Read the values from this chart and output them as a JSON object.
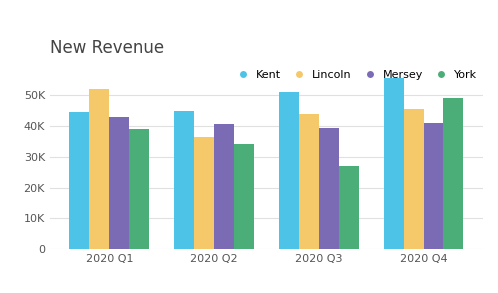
{
  "title": "New Revenue",
  "categories": [
    "2020 Q1",
    "2020 Q2",
    "2020 Q3",
    "2020 Q4"
  ],
  "series": {
    "Kent": [
      44500,
      45000,
      51000,
      55500
    ],
    "Lincoln": [
      52000,
      36500,
      44000,
      45500
    ],
    "Mersey": [
      43000,
      40500,
      39500,
      41000
    ],
    "York": [
      39000,
      34000,
      27000,
      49000
    ]
  },
  "colors": {
    "Kent": "#4DC3E8",
    "Lincoln": "#F5C96A",
    "Mersey": "#7B6BB5",
    "York": "#4BAE79"
  },
  "ylim": [
    0,
    60000
  ],
  "yticks": [
    0,
    10000,
    20000,
    30000,
    40000,
    50000
  ],
  "background_color": "#ffffff",
  "grid_color": "#e0e0e0",
  "title_fontsize": 12,
  "legend_fontsize": 8,
  "tick_fontsize": 8,
  "bar_width": 0.19
}
